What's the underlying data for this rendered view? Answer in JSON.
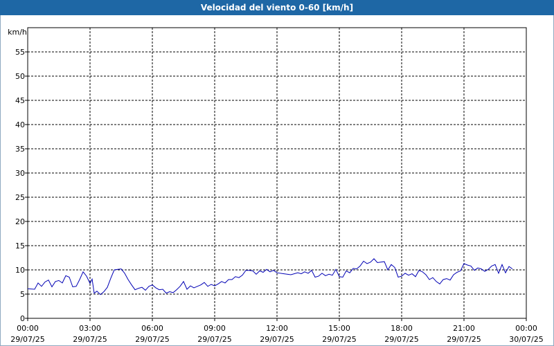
{
  "title": "Velocidad del viento 0-60 [km/h]",
  "chart_data": {
    "type": "line",
    "title": "Velocidad del viento 0-60 [km/h]",
    "ylabel": "km/h",
    "ylim": [
      0,
      60
    ],
    "y_ticks": [
      0,
      5,
      10,
      15,
      20,
      25,
      30,
      35,
      40,
      45,
      50,
      55
    ],
    "xlim": [
      "29/07/25 00:00",
      "30/07/25 00:00"
    ],
    "x_ticks": [
      {
        "time": "00:00",
        "date": "29/07/25"
      },
      {
        "time": "03:00",
        "date": "29/07/25"
      },
      {
        "time": "06:00",
        "date": "29/07/25"
      },
      {
        "time": "09:00",
        "date": "29/07/25"
      },
      {
        "time": "12:00",
        "date": "29/07/25"
      },
      {
        "time": "15:00",
        "date": "29/07/25"
      },
      {
        "time": "18:00",
        "date": "29/07/25"
      },
      {
        "time": "21:00",
        "date": "29/07/25"
      },
      {
        "time": "00:00",
        "date": "30/07/25"
      }
    ],
    "grid": true,
    "line_color": "#0000b4",
    "series": [
      {
        "values": [
          [
            "29/07/25 00:00",
            6.1
          ],
          [
            "29/07/25 00:20",
            6.0
          ],
          [
            "29/07/25 00:30",
            7.3
          ],
          [
            "29/07/25 00:40",
            6.6
          ],
          [
            "29/07/25 00:50",
            7.5
          ],
          [
            "29/07/25 01:00",
            7.9
          ],
          [
            "29/07/25 01:10",
            6.5
          ],
          [
            "29/07/25 01:20",
            7.6
          ],
          [
            "29/07/25 01:30",
            7.8
          ],
          [
            "29/07/25 01:40",
            7.3
          ],
          [
            "29/07/25 01:50",
            8.8
          ],
          [
            "29/07/25 02:00",
            8.5
          ],
          [
            "29/07/25 02:10",
            6.5
          ],
          [
            "29/07/25 02:20",
            6.6
          ],
          [
            "29/07/25 02:30",
            8.0
          ],
          [
            "29/07/25 02:40",
            9.6
          ],
          [
            "29/07/25 02:50",
            8.7
          ],
          [
            "29/07/25 03:00",
            7.2
          ],
          [
            "29/07/25 03:06",
            8.1
          ],
          [
            "29/07/25 03:12",
            5.2
          ],
          [
            "29/07/25 03:20",
            5.6
          ],
          [
            "29/07/25 03:30",
            4.9
          ],
          [
            "29/07/25 03:40",
            5.5
          ],
          [
            "29/07/25 03:50",
            6.4
          ],
          [
            "29/07/25 04:00",
            8.3
          ],
          [
            "29/07/25 04:10",
            10.0
          ],
          [
            "29/07/25 04:20",
            10.1
          ],
          [
            "29/07/25 04:30",
            10.2
          ],
          [
            "29/07/25 04:40",
            9.3
          ],
          [
            "29/07/25 04:50",
            8.0
          ],
          [
            "29/07/25 05:00",
            6.9
          ],
          [
            "29/07/25 05:10",
            5.9
          ],
          [
            "29/07/25 05:20",
            6.2
          ],
          [
            "29/07/25 05:30",
            6.4
          ],
          [
            "29/07/25 05:40",
            5.8
          ],
          [
            "29/07/25 05:50",
            6.6
          ],
          [
            "29/07/25 06:00",
            6.9
          ],
          [
            "29/07/25 06:10",
            6.3
          ],
          [
            "29/07/25 06:20",
            5.9
          ],
          [
            "29/07/25 06:30",
            6.0
          ],
          [
            "29/07/25 06:40",
            5.2
          ],
          [
            "29/07/25 06:50",
            5.5
          ],
          [
            "29/07/25 07:00",
            5.3
          ],
          [
            "29/07/25 07:10",
            5.9
          ],
          [
            "29/07/25 07:20",
            6.6
          ],
          [
            "29/07/25 07:30",
            7.6
          ],
          [
            "29/07/25 07:40",
            6.0
          ],
          [
            "29/07/25 07:50",
            6.7
          ],
          [
            "29/07/25 08:00",
            6.3
          ],
          [
            "29/07/25 08:10",
            6.6
          ],
          [
            "29/07/25 08:20",
            6.9
          ],
          [
            "29/07/25 08:30",
            7.4
          ],
          [
            "29/07/25 08:40",
            6.6
          ],
          [
            "29/07/25 08:50",
            7.0
          ],
          [
            "29/07/25 09:00",
            6.7
          ],
          [
            "29/07/25 09:10",
            7.1
          ],
          [
            "29/07/25 09:20",
            7.6
          ],
          [
            "29/07/25 09:30",
            7.3
          ],
          [
            "29/07/25 09:40",
            8.0
          ],
          [
            "29/07/25 09:50",
            8.0
          ],
          [
            "29/07/25 10:00",
            8.6
          ],
          [
            "29/07/25 10:10",
            8.4
          ],
          [
            "29/07/25 10:20",
            8.9
          ],
          [
            "29/07/25 10:30",
            9.9
          ],
          [
            "29/07/25 10:40",
            9.9
          ],
          [
            "29/07/25 10:50",
            9.8
          ],
          [
            "29/07/25 11:00",
            9.1
          ],
          [
            "29/07/25 11:10",
            9.8
          ],
          [
            "29/07/25 11:20",
            9.5
          ],
          [
            "29/07/25 11:30",
            10.1
          ],
          [
            "29/07/25 11:40",
            9.6
          ],
          [
            "29/07/25 11:50",
            9.9
          ],
          [
            "29/07/25 12:00",
            9.4
          ],
          [
            "29/07/25 12:20",
            9.2
          ],
          [
            "29/07/25 12:40",
            9.0
          ],
          [
            "29/07/25 13:00",
            9.4
          ],
          [
            "29/07/25 13:10",
            9.2
          ],
          [
            "29/07/25 13:20",
            9.6
          ],
          [
            "29/07/25 13:30",
            9.3
          ],
          [
            "29/07/25 13:40",
            9.9
          ],
          [
            "29/07/25 13:50",
            8.5
          ],
          [
            "29/07/25 14:00",
            8.7
          ],
          [
            "29/07/25 14:10",
            9.3
          ],
          [
            "29/07/25 14:20",
            8.8
          ],
          [
            "29/07/25 14:30",
            9.1
          ],
          [
            "29/07/25 14:40",
            8.9
          ],
          [
            "29/07/25 14:50",
            10.1
          ],
          [
            "29/07/25 15:00",
            8.6
          ],
          [
            "29/07/25 15:10",
            8.5
          ],
          [
            "29/07/25 15:20",
            9.8
          ],
          [
            "29/07/25 15:30",
            9.4
          ],
          [
            "29/07/25 15:40",
            10.3
          ],
          [
            "29/07/25 15:50",
            10.2
          ],
          [
            "29/07/25 16:00",
            10.8
          ],
          [
            "29/07/25 16:10",
            11.8
          ],
          [
            "29/07/25 16:20",
            11.3
          ],
          [
            "29/07/25 16:30",
            11.6
          ],
          [
            "29/07/25 16:40",
            12.3
          ],
          [
            "29/07/25 16:50",
            11.5
          ],
          [
            "29/07/25 17:00",
            11.6
          ],
          [
            "29/07/25 17:10",
            11.7
          ],
          [
            "29/07/25 17:20",
            10.0
          ],
          [
            "29/07/25 17:30",
            11.1
          ],
          [
            "29/07/25 17:40",
            10.5
          ],
          [
            "29/07/25 17:50",
            8.5
          ],
          [
            "29/07/25 18:00",
            8.7
          ],
          [
            "29/07/25 18:10",
            9.3
          ],
          [
            "29/07/25 18:20",
            8.9
          ],
          [
            "29/07/25 18:30",
            9.2
          ],
          [
            "29/07/25 18:40",
            8.6
          ],
          [
            "29/07/25 18:50",
            9.9
          ],
          [
            "29/07/25 19:00",
            9.6
          ],
          [
            "29/07/25 19:10",
            9.0
          ],
          [
            "29/07/25 19:20",
            8.0
          ],
          [
            "29/07/25 19:30",
            8.4
          ],
          [
            "29/07/25 19:40",
            7.6
          ],
          [
            "29/07/25 19:50",
            7.1
          ],
          [
            "29/07/25 20:00",
            8.0
          ],
          [
            "29/07/25 20:10",
            8.2
          ],
          [
            "29/07/25 20:20",
            7.9
          ],
          [
            "29/07/25 20:30",
            9.0
          ],
          [
            "29/07/25 20:40",
            9.5
          ],
          [
            "29/07/25 20:50",
            9.8
          ],
          [
            "29/07/25 21:00",
            11.3
          ],
          [
            "29/07/25 21:10",
            11.0
          ],
          [
            "29/07/25 21:20",
            10.8
          ],
          [
            "29/07/25 21:30",
            9.9
          ],
          [
            "29/07/25 21:40",
            10.4
          ],
          [
            "29/07/25 21:50",
            10.2
          ],
          [
            "29/07/25 22:00",
            9.7
          ],
          [
            "29/07/25 22:10",
            10.1
          ],
          [
            "29/07/25 22:20",
            10.8
          ],
          [
            "29/07/25 22:30",
            11.1
          ],
          [
            "29/07/25 22:40",
            9.3
          ],
          [
            "29/07/25 22:50",
            11.1
          ],
          [
            "29/07/25 23:00",
            9.4
          ],
          [
            "29/07/25 23:10",
            10.7
          ],
          [
            "29/07/25 23:20",
            10.2
          ]
        ]
      }
    ]
  }
}
